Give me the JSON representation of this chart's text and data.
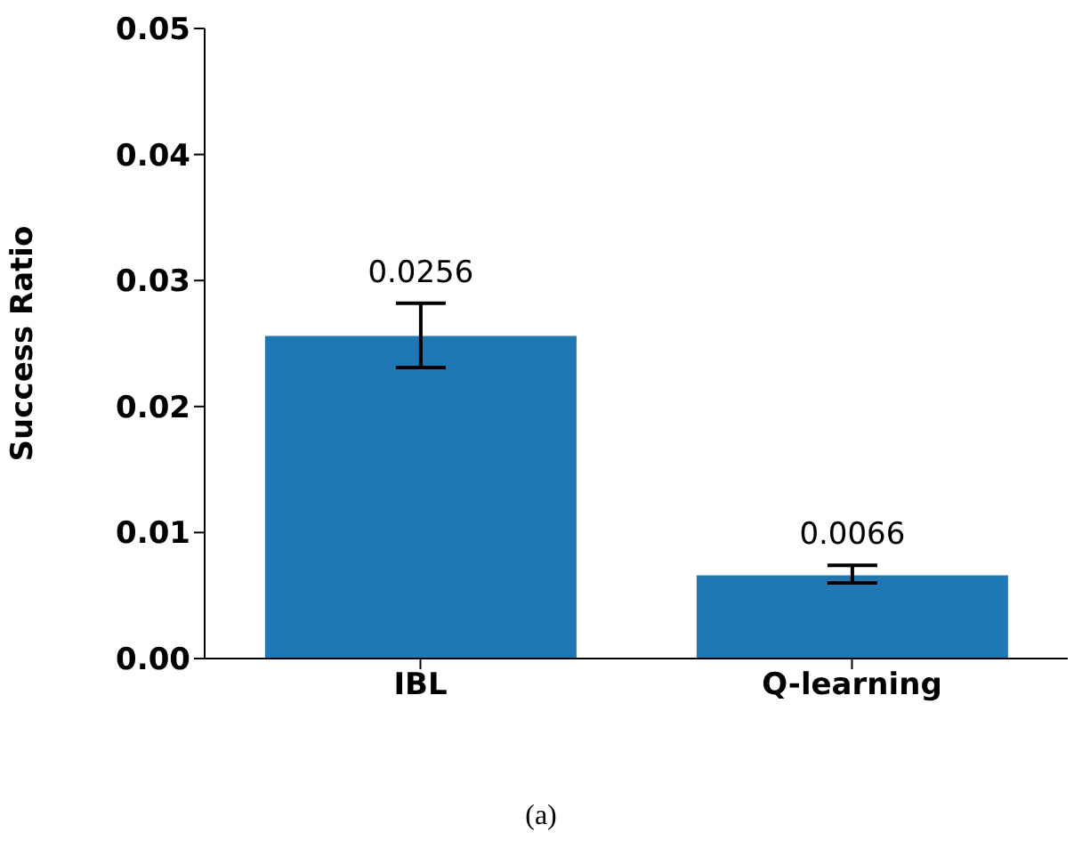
{
  "chart_data": {
    "type": "bar",
    "categories": [
      "IBL",
      "Q-learning"
    ],
    "values": [
      0.0256,
      0.0066
    ],
    "color": "#1f77b4",
    "errors": [
      [
        0.0231,
        0.0282
      ],
      [
        0.006,
        0.0074
      ]
    ],
    "ylabel": "Success Ratio",
    "ylim": [
      0,
      0.05
    ],
    "yticks": [
      {
        "value": 0,
        "label": "0.00"
      },
      0.01,
      0.02,
      0.03,
      0.04,
      0.05
    ],
    "data_labels": true,
    "grid": false,
    "legend": false,
    "annotations": [
      "(a)"
    ]
  }
}
